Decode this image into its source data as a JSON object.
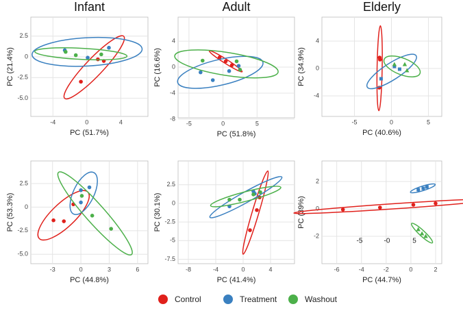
{
  "chart_data": [
    {
      "type": "scatter",
      "title": "Infant",
      "xlabel": "PC (51.7%)",
      "ylabel": "PC (21.4%)",
      "xlim": [
        -6.6,
        7.2
      ],
      "ylim": [
        -7.2,
        4.8
      ],
      "xticks": [
        -4,
        0,
        4
      ],
      "yticks": [
        2.5,
        0,
        -2.5,
        {
          "value": -5,
          "label": "-5.0"
        }
      ],
      "grid": true,
      "ellipse": true,
      "series": [
        {
          "name": "Control",
          "color": "#e0201b",
          "marker": "circle",
          "x": [
            1.3,
            2.0,
            -0.7
          ],
          "values": [
            -0.3,
            -0.5,
            -3.0
          ]
        },
        {
          "name": "Treatment",
          "color": "#3a80c0",
          "marker": "circle",
          "x": [
            -2.6,
            0.1,
            2.6
          ],
          "values": [
            0.8,
            -0.1,
            1.1
          ]
        },
        {
          "name": "Washout",
          "color": "#4cb04a",
          "marker": "circle",
          "x": [
            -2.5,
            -1.3,
            1.7
          ],
          "values": [
            0.6,
            0.2,
            0.3
          ]
        }
      ]
    },
    {
      "type": "scatter",
      "title": "Adult",
      "xlabel": "PC (51.8%)",
      "ylabel": "PC (16.6%)",
      "xlim": [
        -6.6,
        10.5
      ],
      "ylim": [
        -7.8,
        7.7
      ],
      "xticks": [
        -5,
        0,
        5
      ],
      "yticks": [
        4,
        0,
        -4,
        -8
      ],
      "grid": true,
      "ellipse": true,
      "series": [
        {
          "name": "Control",
          "color": "#e0201b",
          "marker": "circle",
          "x": [
            -0.5,
            1.3,
            0.4
          ],
          "values": [
            1.5,
            0.3,
            0.9
          ]
        },
        {
          "name": "Treatment",
          "color": "#3a80c0",
          "marker": "circle",
          "x": [
            -3.3,
            -1.5,
            0.9,
            2.3
          ],
          "values": [
            -0.8,
            -2.0,
            -0.6,
            0.2
          ]
        },
        {
          "name": "Washout",
          "color": "#4cb04a",
          "marker": "circle",
          "x": [
            -3.0,
            2.0,
            2.5
          ],
          "values": [
            1.0,
            0.9,
            -0.4
          ]
        }
      ]
    },
    {
      "type": "scatter",
      "title": "Elderly",
      "xlabel": "PC (40.6%)",
      "ylabel": "PC (34.9%)",
      "xlim": [
        -9.4,
        6.8
      ],
      "ylim": [
        -7.0,
        7.5
      ],
      "xticks": [
        -5,
        0,
        5
      ],
      "yticks": [
        4,
        0,
        -4
      ],
      "grid": true,
      "ellipse": true,
      "series": [
        {
          "name": "Control",
          "color": "#e0201b",
          "marker": "circle",
          "x": [
            -1.6,
            -1.55,
            -1.65
          ],
          "values": [
            1.6,
            1.3,
            -2.8
          ]
        },
        {
          "name": "Treatment",
          "color": "#3a80c0",
          "marker": "square",
          "x": [
            -1.4,
            0.4,
            1.1
          ],
          "values": [
            -1.5,
            0.3,
            -0.1
          ]
        },
        {
          "name": "Washout",
          "color": "#4cb04a",
          "marker": "triangle",
          "x": [
            0.4,
            1.8,
            2.1
          ],
          "values": [
            0.6,
            0.6,
            -0.3
          ]
        }
      ]
    },
    {
      "type": "scatter",
      "xlabel": "PC (44.8%)",
      "ylabel": "PC (53.3%)",
      "xlim": [
        -5.3,
        7.1
      ],
      "ylim": [
        -6.0,
        4.9
      ],
      "xticks": [
        -3,
        0,
        3,
        6
      ],
      "yticks": [
        2.5,
        0,
        -2.5,
        {
          "value": -5,
          "label": "-5.0"
        }
      ],
      "grid": true,
      "ellipse": true,
      "series": [
        {
          "name": "Control",
          "color": "#e0201b",
          "marker": "circle",
          "x": [
            -2.9,
            -1.8,
            -0.8
          ],
          "values": [
            -1.4,
            -1.5,
            0.3
          ]
        },
        {
          "name": "Treatment",
          "color": "#3a80c0",
          "marker": "circle",
          "x": [
            0.0,
            0.9,
            0.0
          ],
          "values": [
            1.8,
            2.1,
            0.5
          ]
        },
        {
          "name": "Washout",
          "color": "#4cb04a",
          "marker": "circle",
          "x": [
            0.1,
            1.2,
            3.2
          ],
          "values": [
            1.2,
            -0.9,
            -2.3
          ]
        }
      ]
    },
    {
      "type": "scatter",
      "xlabel": "PC (41.4%)",
      "ylabel": "PC (30.1%)",
      "xlim": [
        -9.5,
        7.5
      ],
      "ylim": [
        -8.1,
        5.7
      ],
      "xticks": [
        -8,
        -4,
        0,
        4
      ],
      "yticks": [
        2.5,
        0,
        -2.5,
        -5,
        -7.5
      ],
      "grid": true,
      "ellipse": true,
      "series": [
        {
          "name": "Control",
          "color": "#e0201b",
          "marker": "circle",
          "x": [
            1.0,
            2.0,
            2.4
          ],
          "values": [
            -3.6,
            -0.9,
            0.8
          ]
        },
        {
          "name": "Treatment",
          "color": "#3a80c0",
          "marker": "circle",
          "x": [
            -2.0,
            1.5,
            1.7
          ],
          "values": [
            -0.4,
            1.6,
            1.3
          ]
        },
        {
          "name": "Washout",
          "color": "#4cb04a",
          "marker": "circle",
          "x": [
            -2.0,
            -0.5,
            1.5,
            2.5
          ],
          "values": [
            0.5,
            0.5,
            1.2,
            1.5
          ]
        }
      ]
    },
    {
      "type": "scatter",
      "xlabel": "PC (44.7%)",
      "ylabel": "PC (39%)",
      "xlim": [
        -7.2,
        2.5
      ],
      "ylim": [
        -4.0,
        3.5
      ],
      "xticks": [
        -6,
        -4,
        -2,
        0,
        2
      ],
      "yticks": [
        2,
        0,
        -2
      ],
      "grid": true,
      "ellipse": true,
      "annotations": [
        "-5",
        "-0",
        "5"
      ],
      "series": [
        {
          "name": "Control",
          "color": "#e0201b",
          "marker": "circle",
          "x": [
            -5.5,
            -2.5,
            0.2,
            2.0
          ],
          "values": [
            -0.05,
            0.1,
            0.3,
            0.4
          ]
        },
        {
          "name": "Treatment",
          "color": "#3a80c0",
          "marker": "square",
          "x": [
            0.6,
            1.0,
            1.3
          ],
          "values": [
            1.4,
            1.5,
            1.6
          ]
        },
        {
          "name": "Washout",
          "color": "#4cb04a",
          "marker": "triangle",
          "x": [
            0.6,
            0.9,
            1.2
          ],
          "values": [
            -1.5,
            -1.8,
            -2.0
          ]
        }
      ]
    }
  ]
}
